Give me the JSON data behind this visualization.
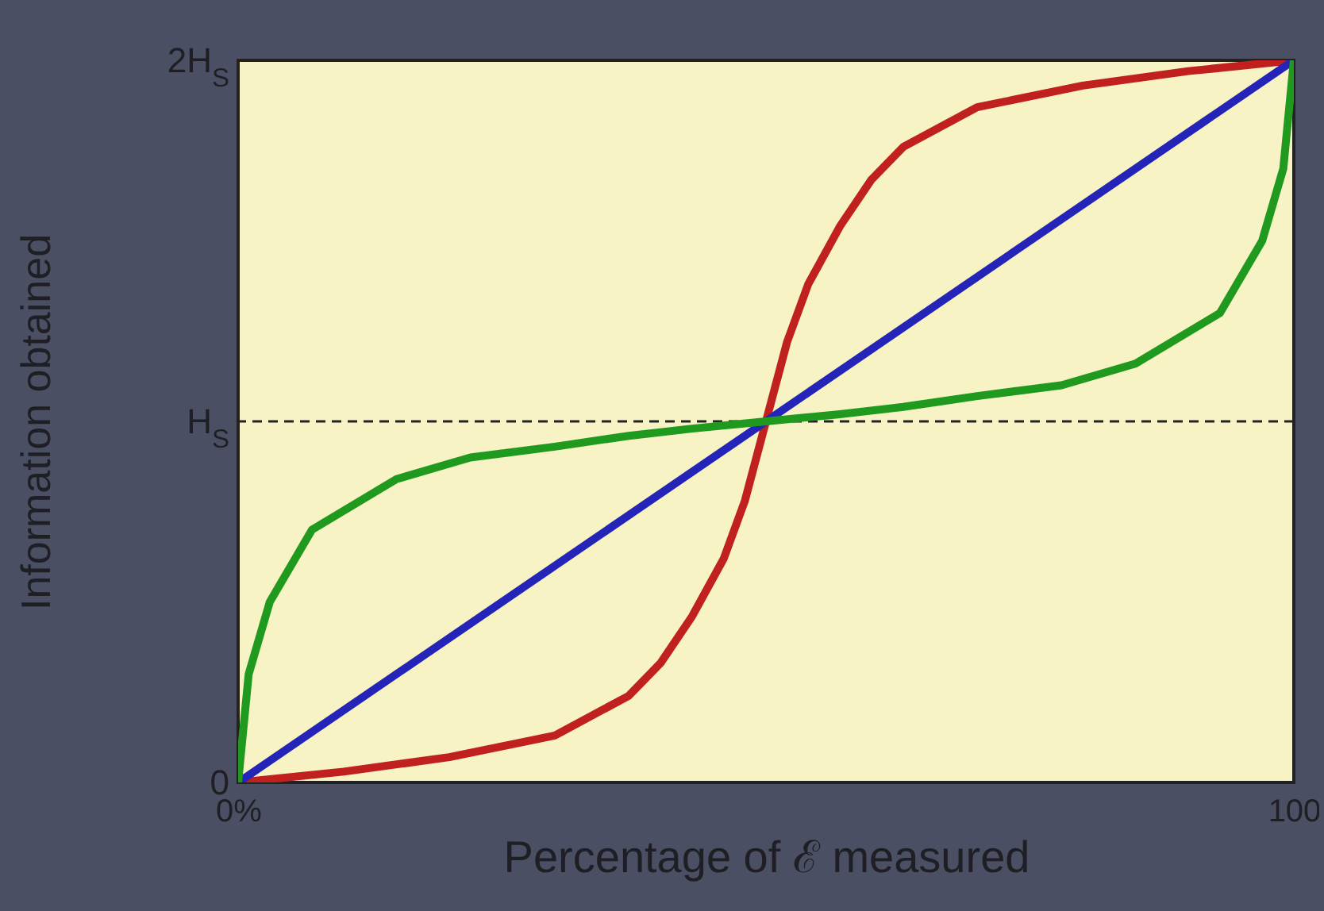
{
  "chart_data": {
    "type": "line",
    "xlabel": "Percentage of ℰ measured",
    "ylabel": "Information obtained",
    "xlim": [
      0,
      100
    ],
    "ylim": [
      0,
      2
    ],
    "xticks": [
      {
        "value": 0,
        "label": "0%"
      },
      {
        "value": 100,
        "label": "100"
      }
    ],
    "yticks": [
      0,
      {
        "value": 1,
        "label": "H$_{S}$"
      },
      {
        "value": 2,
        "label": "2H$_{S}$"
      }
    ],
    "grid": false,
    "line_style": "solid",
    "ref_lines": [
      {
        "axis": "y",
        "value": 1,
        "label": null,
        "color": "#222222",
        "line_style": "dashed"
      }
    ],
    "series": [
      {
        "color": "#c0201e",
        "x": [
          0,
          10,
          20,
          30,
          37,
          40,
          43,
          46,
          48,
          50,
          52,
          54,
          57,
          60,
          63,
          70,
          80,
          90,
          100
        ],
        "values": [
          0,
          0.03,
          0.07,
          0.13,
          0.24,
          0.33,
          0.46,
          0.62,
          0.78,
          1,
          1.22,
          1.38,
          1.54,
          1.67,
          1.76,
          1.87,
          1.93,
          1.97,
          2
        ]
      },
      {
        "color": "#2424b8",
        "x": [
          0,
          100
        ],
        "values": [
          0,
          2
        ]
      },
      {
        "color": "#1f9a1f",
        "x": [
          0,
          1,
          3,
          7,
          15,
          22,
          30,
          37,
          43,
          50,
          57,
          63,
          70,
          78,
          85,
          93,
          97,
          99,
          100
        ],
        "values": [
          0,
          0.3,
          0.5,
          0.7,
          0.84,
          0.9,
          0.93,
          0.96,
          0.98,
          1,
          1.02,
          1.04,
          1.07,
          1.1,
          1.16,
          1.3,
          1.5,
          1.7,
          2
        ]
      }
    ]
  }
}
